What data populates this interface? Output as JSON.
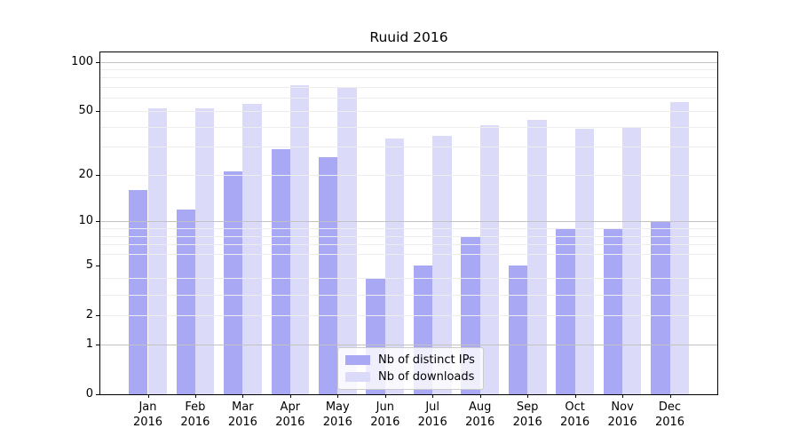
{
  "chart_data": {
    "type": "bar",
    "title": "Ruuid 2016",
    "xlabel": "",
    "ylabel": "",
    "scale": "log1p",
    "ylim": [
      0,
      114
    ],
    "grid": "on",
    "legend_position": "lower center",
    "yticks": [
      0,
      1,
      2,
      5,
      10,
      20,
      50,
      100
    ],
    "major_gridlines": [
      1,
      10,
      100
    ],
    "minor_gridlines": [
      2,
      3,
      4,
      6,
      7,
      8,
      9,
      20,
      30,
      40,
      50,
      60,
      70,
      80,
      90
    ],
    "categories": [
      {
        "label": "Jan",
        "sublabel": "2016"
      },
      {
        "label": "Feb",
        "sublabel": "2016"
      },
      {
        "label": "Mar",
        "sublabel": "2016"
      },
      {
        "label": "Apr",
        "sublabel": "2016"
      },
      {
        "label": "May",
        "sublabel": "2016"
      },
      {
        "label": "Jun",
        "sublabel": "2016"
      },
      {
        "label": "Jul",
        "sublabel": "2016"
      },
      {
        "label": "Aug",
        "sublabel": "2016"
      },
      {
        "label": "Sep",
        "sublabel": "2016"
      },
      {
        "label": "Oct",
        "sublabel": "2016"
      },
      {
        "label": "Nov",
        "sublabel": "2016"
      },
      {
        "label": "Dec",
        "sublabel": "2016"
      }
    ],
    "series": [
      {
        "name": "Nb of distinct IPs",
        "color": "#a8a8f5",
        "values": [
          16,
          12,
          21,
          29,
          26,
          4,
          5,
          8,
          5,
          9,
          9,
          10
        ]
      },
      {
        "name": "Nb of downloads",
        "color": "#dbdbf9",
        "values": [
          52,
          52,
          55,
          72,
          69,
          34,
          35,
          41,
          44,
          39,
          40,
          57
        ]
      }
    ]
  }
}
